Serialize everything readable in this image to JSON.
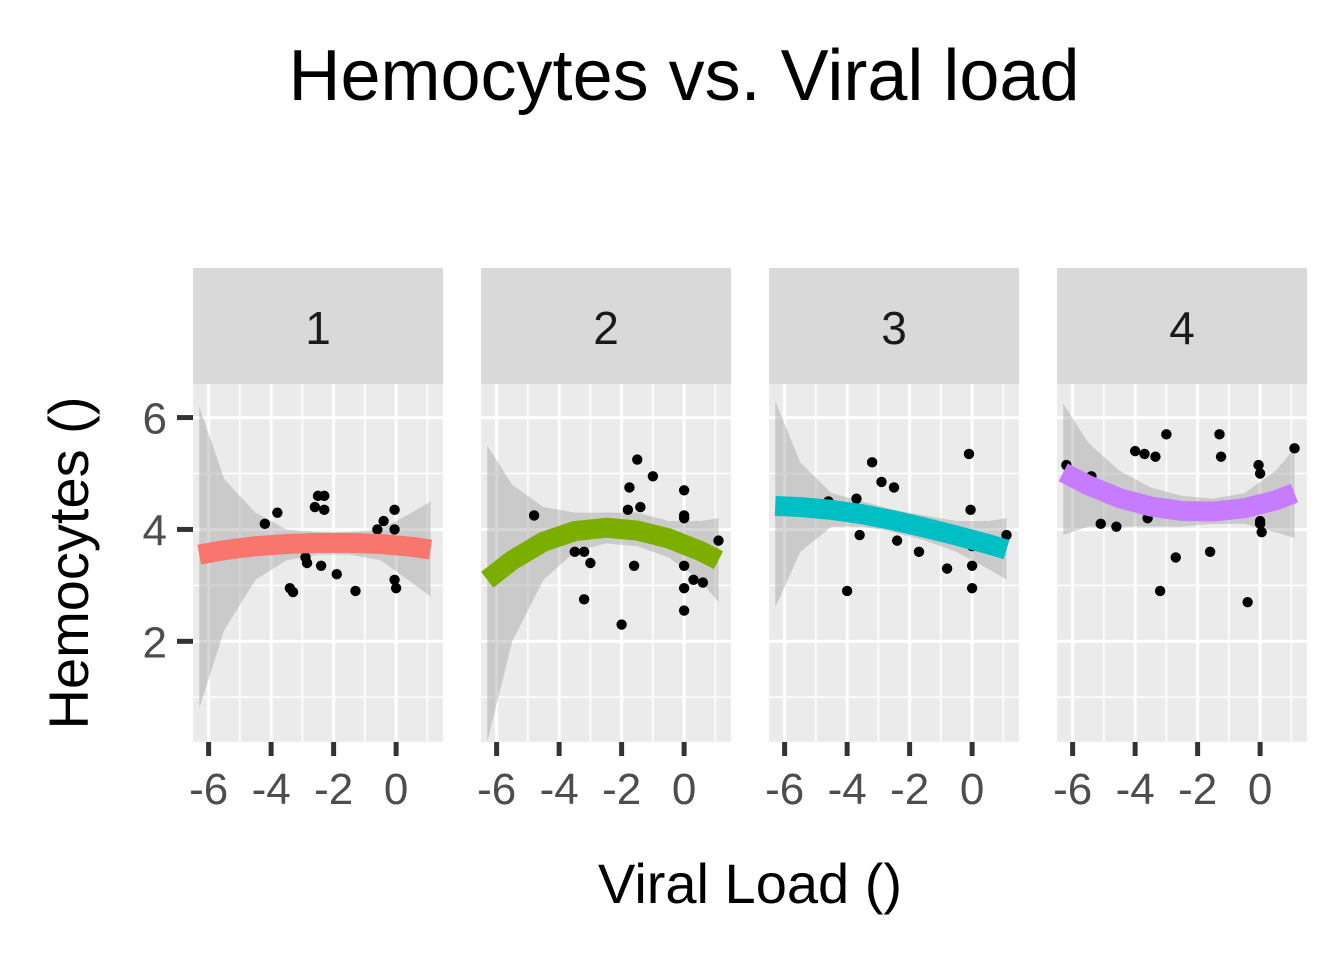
{
  "chart_data": {
    "type": "scatter",
    "title": "Hemocytes vs. Viral load",
    "xlabel": "Viral Load ()",
    "ylabel": "Hemocytes ()",
    "xlim": [
      -6.5,
      1.5
    ],
    "ylim": [
      0.2,
      6.6
    ],
    "x_ticks": [
      -6,
      -4,
      -2,
      0
    ],
    "x_tick_labels": [
      "-6",
      "-4",
      "-2",
      "0"
    ],
    "y_ticks": [
      2,
      4,
      6
    ],
    "y_tick_labels": [
      "2",
      "4",
      "6"
    ],
    "grid": true,
    "legend": "none",
    "facets": [
      {
        "label": "1",
        "color": "#F8766D",
        "points": [
          [
            -4.2,
            4.1
          ],
          [
            -3.8,
            4.3
          ],
          [
            -3.4,
            2.95
          ],
          [
            -3.3,
            2.88
          ],
          [
            -2.9,
            3.5
          ],
          [
            -2.85,
            3.4
          ],
          [
            -2.6,
            4.4
          ],
          [
            -2.5,
            4.6
          ],
          [
            -2.4,
            3.35
          ],
          [
            -2.3,
            4.6
          ],
          [
            -2.3,
            4.35
          ],
          [
            -1.9,
            3.2
          ],
          [
            -1.3,
            2.9
          ],
          [
            -0.6,
            4.0
          ],
          [
            -0.4,
            4.15
          ],
          [
            -0.05,
            4.35
          ],
          [
            -0.05,
            4.0
          ],
          [
            -0.05,
            3.1
          ],
          [
            0.0,
            2.95
          ]
        ],
        "fit_x": [
          -6.3,
          -5.5,
          -4.5,
          -3.5,
          -2.5,
          -1.5,
          -0.5,
          0.5,
          1.1
        ],
        "fit_y": [
          3.55,
          3.63,
          3.7,
          3.74,
          3.76,
          3.76,
          3.74,
          3.69,
          3.64
        ],
        "ci_low": [
          0.8,
          2.2,
          3.1,
          3.45,
          3.55,
          3.55,
          3.45,
          3.05,
          2.8
        ],
        "ci_high": [
          6.2,
          4.9,
          4.3,
          4.0,
          3.95,
          3.95,
          4.0,
          4.3,
          4.5
        ]
      },
      {
        "label": "2",
        "color": "#7CAE00",
        "points": [
          [
            -4.8,
            4.25
          ],
          [
            -4.0,
            3.9
          ],
          [
            -3.5,
            3.6
          ],
          [
            -3.3,
            4.05
          ],
          [
            -3.2,
            3.6
          ],
          [
            -3.0,
            3.4
          ],
          [
            -3.2,
            2.75
          ],
          [
            -2.0,
            2.3
          ],
          [
            -1.8,
            4.35
          ],
          [
            -1.75,
            4.75
          ],
          [
            -1.6,
            3.35
          ],
          [
            -1.5,
            5.25
          ],
          [
            -1.4,
            4.4
          ],
          [
            -1.0,
            4.95
          ],
          [
            0.0,
            4.7
          ],
          [
            0.0,
            4.25
          ],
          [
            0.0,
            4.2
          ],
          [
            0.0,
            3.35
          ],
          [
            0.0,
            2.95
          ],
          [
            0.0,
            2.55
          ],
          [
            0.3,
            3.1
          ],
          [
            0.6,
            3.05
          ],
          [
            1.1,
            3.8
          ]
        ],
        "fit_x": [
          -6.3,
          -5.5,
          -4.5,
          -3.5,
          -2.5,
          -1.5,
          -0.5,
          0.5,
          1.1
        ],
        "fit_y": [
          3.1,
          3.45,
          3.78,
          3.97,
          4.03,
          3.98,
          3.84,
          3.62,
          3.45
        ],
        "ci_low": [
          0.2,
          2.0,
          3.1,
          3.6,
          3.75,
          3.7,
          3.5,
          3.1,
          2.7
        ],
        "ci_high": [
          5.5,
          4.8,
          4.4,
          4.3,
          4.3,
          4.3,
          4.15,
          4.15,
          4.2
        ]
      },
      {
        "label": "3",
        "color": "#00BFC4",
        "points": [
          [
            -4.6,
            4.5
          ],
          [
            -4.0,
            2.9
          ],
          [
            -3.7,
            4.55
          ],
          [
            -3.6,
            3.9
          ],
          [
            -3.2,
            5.2
          ],
          [
            -2.9,
            4.85
          ],
          [
            -2.5,
            4.75
          ],
          [
            -2.4,
            3.8
          ],
          [
            -1.7,
            3.6
          ],
          [
            -0.8,
            3.3
          ],
          [
            -0.1,
            5.35
          ],
          [
            -0.05,
            4.35
          ],
          [
            0.0,
            3.7
          ],
          [
            0.0,
            3.35
          ],
          [
            0.0,
            2.95
          ],
          [
            1.1,
            3.9
          ]
        ],
        "fit_x": [
          -6.3,
          -5.5,
          -4.5,
          -3.5,
          -2.5,
          -1.5,
          -0.5,
          0.5,
          1.1
        ],
        "fit_y": [
          4.42,
          4.4,
          4.35,
          4.27,
          4.16,
          4.03,
          3.89,
          3.74,
          3.64
        ],
        "ci_low": [
          2.6,
          3.6,
          4.05,
          4.05,
          3.95,
          3.8,
          3.6,
          3.3,
          3.1
        ],
        "ci_high": [
          6.3,
          5.2,
          4.65,
          4.5,
          4.35,
          4.25,
          4.15,
          4.15,
          4.2
        ]
      },
      {
        "label": "4",
        "color": "#C77CFF",
        "points": [
          [
            -6.2,
            5.15
          ],
          [
            -5.4,
            4.95
          ],
          [
            -5.1,
            4.1
          ],
          [
            -4.6,
            4.05
          ],
          [
            -4.0,
            5.4
          ],
          [
            -3.7,
            5.35
          ],
          [
            -3.6,
            4.2
          ],
          [
            -3.35,
            5.3
          ],
          [
            -3.2,
            2.9
          ],
          [
            -3.0,
            5.7
          ],
          [
            -2.7,
            3.5
          ],
          [
            -1.6,
            3.6
          ],
          [
            -1.3,
            5.7
          ],
          [
            -1.25,
            5.3
          ],
          [
            -0.4,
            2.7
          ],
          [
            -0.05,
            5.15
          ],
          [
            0.0,
            5.0
          ],
          [
            0.0,
            4.15
          ],
          [
            0.0,
            4.1
          ],
          [
            0.05,
            3.95
          ],
          [
            1.1,
            5.45
          ]
        ],
        "fit_x": [
          -6.3,
          -5.5,
          -4.5,
          -3.5,
          -2.5,
          -1.5,
          -0.5,
          0.5,
          1.1
        ],
        "fit_y": [
          5.02,
          4.79,
          4.56,
          4.41,
          4.33,
          4.32,
          4.38,
          4.52,
          4.65
        ],
        "ci_low": [
          3.9,
          4.05,
          4.05,
          4.05,
          4.05,
          4.1,
          4.1,
          3.95,
          3.85
        ],
        "ci_high": [
          6.25,
          5.55,
          5.05,
          4.75,
          4.6,
          4.55,
          4.65,
          5.05,
          5.45
        ]
      }
    ]
  }
}
